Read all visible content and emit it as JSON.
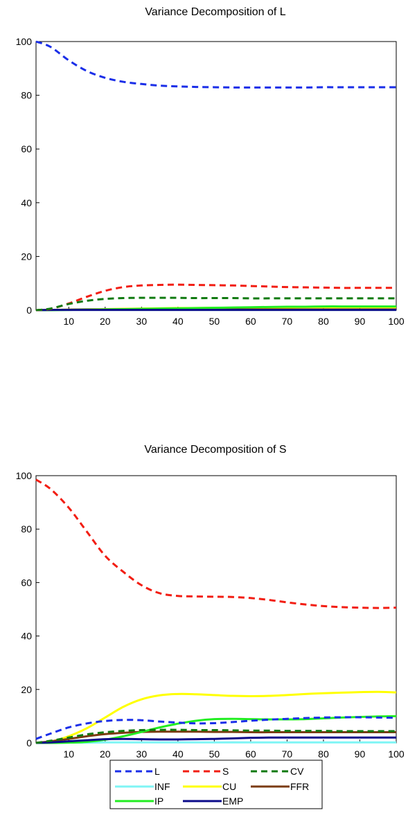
{
  "chart_data": [
    {
      "type": "line",
      "title": "Variance Decomposition of L",
      "xlabel": "",
      "ylabel": "",
      "xlim": [
        1,
        100
      ],
      "ylim": [
        0,
        100
      ],
      "x_ticks": [
        10,
        20,
        30,
        40,
        50,
        60,
        70,
        80,
        90,
        100
      ],
      "y_ticks": [
        0,
        20,
        40,
        60,
        80,
        100
      ],
      "x": [
        1,
        5,
        10,
        15,
        20,
        25,
        30,
        35,
        40,
        45,
        50,
        55,
        60,
        65,
        70,
        75,
        80,
        85,
        90,
        95,
        100
      ],
      "series": [
        {
          "name": "L",
          "values": [
            100,
            98,
            93,
            89,
            86.5,
            85,
            84.2,
            83.6,
            83.3,
            83.1,
            83.0,
            82.9,
            82.9,
            82.9,
            82.9,
            82.9,
            83.0,
            83.0,
            83.0,
            83.0,
            83.0
          ]
        },
        {
          "name": "S",
          "values": [
            0,
            0.5,
            2.5,
            5,
            7.2,
            8.6,
            9.2,
            9.4,
            9.5,
            9.4,
            9.3,
            9.2,
            9.0,
            8.8,
            8.6,
            8.5,
            8.4,
            8.3,
            8.3,
            8.3,
            8.3
          ]
        },
        {
          "name": "CV",
          "values": [
            0,
            0.6,
            2.3,
            3.5,
            4.2,
            4.5,
            4.6,
            4.6,
            4.6,
            4.5,
            4.5,
            4.5,
            4.4,
            4.4,
            4.4,
            4.4,
            4.4,
            4.4,
            4.4,
            4.4,
            4.4
          ]
        },
        {
          "name": "INF",
          "values": [
            0,
            0.1,
            0.1,
            0.1,
            0.1,
            0.1,
            0.1,
            0.1,
            0.1,
            0.1,
            0.1,
            0.1,
            0.1,
            0.1,
            0.1,
            0.1,
            0.1,
            0.1,
            0.1,
            0.1,
            0.1
          ]
        },
        {
          "name": "CU",
          "values": [
            0,
            0.1,
            0.2,
            0.3,
            0.4,
            0.5,
            0.6,
            0.7,
            0.8,
            0.8,
            0.9,
            0.9,
            1.0,
            1.0,
            1.0,
            1.1,
            1.1,
            1.1,
            1.1,
            1.1,
            1.1
          ]
        },
        {
          "name": "FFR",
          "values": [
            0,
            0.1,
            0.2,
            0.3,
            0.3,
            0.3,
            0.3,
            0.3,
            0.3,
            0.3,
            0.3,
            0.3,
            0.3,
            0.3,
            0.3,
            0.3,
            0.3,
            0.3,
            0.3,
            0.3,
            0.3
          ]
        },
        {
          "name": "IP",
          "values": [
            0,
            0.0,
            0.1,
            0.2,
            0.3,
            0.4,
            0.5,
            0.6,
            0.7,
            0.8,
            0.9,
            1.0,
            1.1,
            1.2,
            1.3,
            1.3,
            1.4,
            1.4,
            1.4,
            1.4,
            1.4
          ]
        },
        {
          "name": "EMP",
          "values": [
            0,
            0.1,
            0.1,
            0.1,
            0.1,
            0.1,
            0.1,
            0.1,
            0.1,
            0.1,
            0.1,
            0.1,
            0.1,
            0.1,
            0.1,
            0.1,
            0.1,
            0.1,
            0.1,
            0.1,
            0.1
          ]
        }
      ]
    },
    {
      "type": "line",
      "title": "Variance Decomposition of S",
      "xlabel": "",
      "ylabel": "",
      "xlim": [
        1,
        100
      ],
      "ylim": [
        0,
        100
      ],
      "x_ticks": [
        10,
        20,
        30,
        40,
        50,
        60,
        70,
        80,
        90,
        100
      ],
      "y_ticks": [
        0,
        20,
        40,
        60,
        80,
        100
      ],
      "x": [
        1,
        5,
        10,
        15,
        20,
        25,
        30,
        35,
        40,
        45,
        50,
        55,
        60,
        65,
        70,
        75,
        80,
        85,
        90,
        95,
        100
      ],
      "series": [
        {
          "name": "L",
          "values": [
            1.5,
            3.5,
            5.8,
            7.3,
            8.2,
            8.6,
            8.5,
            8.0,
            7.6,
            7.3,
            7.4,
            7.8,
            8.3,
            8.7,
            9.0,
            9.3,
            9.5,
            9.6,
            9.6,
            9.5,
            9.4
          ]
        },
        {
          "name": "S",
          "values": [
            98.5,
            95,
            88,
            79,
            70,
            64,
            59,
            56,
            55,
            54.8,
            54.7,
            54.6,
            54.2,
            53.5,
            52.6,
            51.8,
            51.2,
            50.8,
            50.6,
            50.5,
            50.6
          ]
        },
        {
          "name": "CV",
          "values": [
            0,
            0.8,
            2.0,
            3.2,
            4.0,
            4.5,
            4.8,
            4.9,
            4.9,
            4.8,
            4.8,
            4.7,
            4.6,
            4.6,
            4.5,
            4.5,
            4.5,
            4.4,
            4.4,
            4.4,
            4.4
          ]
        },
        {
          "name": "INF",
          "values": [
            0,
            0.1,
            0.1,
            0.1,
            0.2,
            0.2,
            0.2,
            0.2,
            0.2,
            0.2,
            0.2,
            0.2,
            0.2,
            0.2,
            0.2,
            0.2,
            0.2,
            0.2,
            0.2,
            0.2,
            0.2
          ]
        },
        {
          "name": "CU",
          "values": [
            0,
            0.5,
            2.5,
            5.5,
            9.5,
            13.5,
            16.3,
            17.8,
            18.3,
            18.2,
            17.9,
            17.6,
            17.5,
            17.6,
            17.9,
            18.3,
            18.6,
            18.8,
            19.0,
            19.1,
            18.9
          ]
        },
        {
          "name": "FFR",
          "values": [
            0,
            0.6,
            1.5,
            2.5,
            3.3,
            3.8,
            4.1,
            4.2,
            4.2,
            4.2,
            4.1,
            4.1,
            4.0,
            4.0,
            4.0,
            4.0,
            4.0,
            4.0,
            4.0,
            4.0,
            4.0
          ]
        },
        {
          "name": "IP",
          "values": [
            0,
            0.0,
            0.1,
            0.4,
            1.2,
            2.5,
            4.1,
            5.8,
            7.2,
            8.3,
            8.9,
            9.0,
            8.9,
            8.8,
            8.8,
            8.9,
            9.2,
            9.5,
            9.7,
            9.9,
            10.0
          ]
        },
        {
          "name": "EMP",
          "values": [
            0,
            0.2,
            0.6,
            1.0,
            1.4,
            1.5,
            1.4,
            1.3,
            1.3,
            1.4,
            1.5,
            1.7,
            1.9,
            2.0,
            2.0,
            2.0,
            2.0,
            2.0,
            2.0,
            2.0,
            2.0
          ]
        }
      ]
    }
  ],
  "legend": {
    "items": [
      "L",
      "S",
      "CV",
      "INF",
      "CU",
      "FFR",
      "IP",
      "EMP"
    ]
  },
  "colors": {
    "L": "#1a2ee8",
    "S": "#f21d12",
    "CV": "#107a10",
    "INF": "#7ff5f5",
    "CU": "#ffff00",
    "FFR": "#7a3a10",
    "IP": "#22ee22",
    "EMP": "#0a0a8a"
  },
  "dashed_series": [
    "L",
    "S",
    "CV"
  ]
}
